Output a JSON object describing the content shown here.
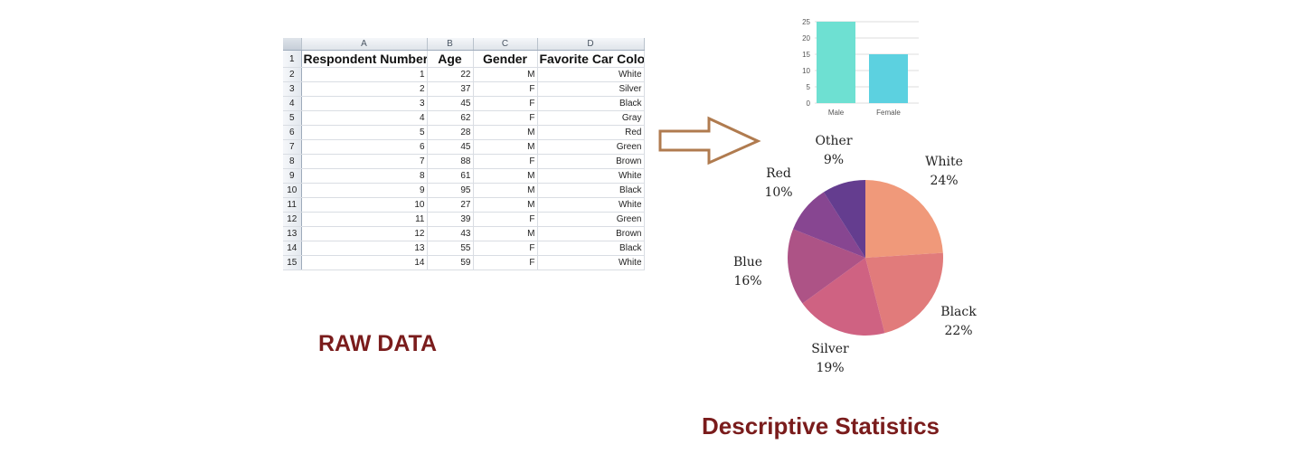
{
  "spreadsheet": {
    "column_letters": [
      "A",
      "B",
      "C",
      "D"
    ],
    "header_row_number": "1",
    "headers": [
      "Respondent Number",
      "Age",
      "Gender",
      "Favorite Car Color"
    ],
    "rows": [
      {
        "row": "2",
        "respondent": "1",
        "age": "22",
        "gender": "M",
        "color": "White"
      },
      {
        "row": "3",
        "respondent": "2",
        "age": "37",
        "gender": "F",
        "color": "Silver"
      },
      {
        "row": "4",
        "respondent": "3",
        "age": "45",
        "gender": "F",
        "color": "Black"
      },
      {
        "row": "5",
        "respondent": "4",
        "age": "62",
        "gender": "F",
        "color": "Gray"
      },
      {
        "row": "6",
        "respondent": "5",
        "age": "28",
        "gender": "M",
        "color": "Red"
      },
      {
        "row": "7",
        "respondent": "6",
        "age": "45",
        "gender": "M",
        "color": "Green"
      },
      {
        "row": "8",
        "respondent": "7",
        "age": "88",
        "gender": "F",
        "color": "Brown"
      },
      {
        "row": "9",
        "respondent": "8",
        "age": "61",
        "gender": "M",
        "color": "White"
      },
      {
        "row": "10",
        "respondent": "9",
        "age": "95",
        "gender": "M",
        "color": "Black"
      },
      {
        "row": "11",
        "respondent": "10",
        "age": "27",
        "gender": "M",
        "color": "White"
      },
      {
        "row": "12",
        "respondent": "11",
        "age": "39",
        "gender": "F",
        "color": "Green"
      },
      {
        "row": "13",
        "respondent": "12",
        "age": "43",
        "gender": "M",
        "color": "Brown"
      },
      {
        "row": "14",
        "respondent": "13",
        "age": "55",
        "gender": "F",
        "color": "Black"
      },
      {
        "row": "15",
        "respondent": "14",
        "age": "59",
        "gender": "F",
        "color": "White"
      }
    ]
  },
  "labels": {
    "raw_data": "RAW DATA",
    "descriptive_statistics": "Descriptive Statistics"
  },
  "arrow": {
    "stroke": "#b07b4f",
    "fill": "#ffffff"
  },
  "colors": {
    "label_color": "#7a1c1c"
  },
  "chart_data": [
    {
      "type": "bar",
      "categories": [
        "Male",
        "Female"
      ],
      "values": [
        25,
        15
      ],
      "colors": [
        "#6ee0d2",
        "#5cd1e0"
      ],
      "ylim": [
        0,
        25
      ],
      "yticks": [
        "0",
        "5",
        "10",
        "15",
        "20",
        "25"
      ],
      "grid": true,
      "title": "",
      "xlabel": "",
      "ylabel": ""
    },
    {
      "type": "pie",
      "slices": [
        {
          "label": "White",
          "percent_label": "24%",
          "value": 24,
          "color": "#f0997a"
        },
        {
          "label": "Black",
          "percent_label": "22%",
          "value": 22,
          "color": "#e17b7b"
        },
        {
          "label": "Silver",
          "percent_label": "19%",
          "value": 19,
          "color": "#cf6282"
        },
        {
          "label": "Blue",
          "percent_label": "16%",
          "value": 16,
          "color": "#ad5386"
        },
        {
          "label": "Red",
          "percent_label": "10%",
          "value": 10,
          "color": "#874691"
        },
        {
          "label": "Other",
          "percent_label": "9%",
          "value": 9,
          "color": "#643d8f"
        }
      ],
      "start": "top, clockwise",
      "title": ""
    }
  ]
}
